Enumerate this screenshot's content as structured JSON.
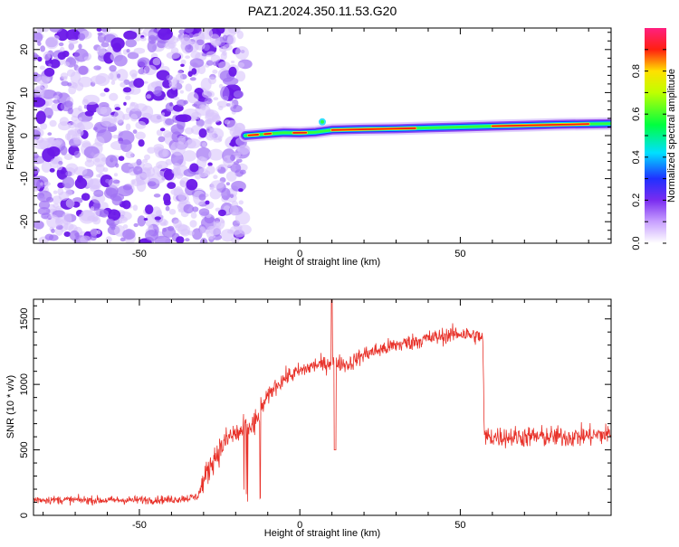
{
  "title": "PAZ1.2024.350.11.53.G20",
  "chart_data": [
    {
      "type": "heatmap",
      "xlabel": "Height of straight line (km)",
      "ylabel": "Frequency (Hz)",
      "xlim": [
        -83,
        97
      ],
      "ylim": [
        -25,
        25
      ],
      "xticks": [
        "-50",
        "0",
        "50"
      ],
      "yticks": [
        "-20",
        "-10",
        "0",
        "10",
        "20"
      ],
      "colorbar": {
        "label": "Normalized spectral amplitude",
        "range": [
          0,
          1
        ],
        "ticks": [
          "0.0",
          "0.2",
          "0.4",
          "0.6",
          "0.8"
        ]
      },
      "noise_region_x": [
        -83,
        -17
      ],
      "signal_track": [
        {
          "x": -17,
          "f": 0.0
        },
        {
          "x": -12,
          "f": 0.3
        },
        {
          "x": -5,
          "f": 0.7
        },
        {
          "x": 0,
          "f": 0.6
        },
        {
          "x": 5,
          "f": 0.8
        },
        {
          "x": 10,
          "f": 1.3
        },
        {
          "x": 20,
          "f": 1.5
        },
        {
          "x": 30,
          "f": 1.6
        },
        {
          "x": 40,
          "f": 1.8
        },
        {
          "x": 50,
          "f": 2.0
        },
        {
          "x": 60,
          "f": 2.2
        },
        {
          "x": 70,
          "f": 2.4
        },
        {
          "x": 80,
          "f": 2.6
        },
        {
          "x": 90,
          "f": 2.7
        },
        {
          "x": 97,
          "f": 2.8
        }
      ]
    },
    {
      "type": "line",
      "xlabel": "Height of straight line (km)",
      "ylabel": "SNR (10 * v/v)",
      "xlim": [
        -83,
        97
      ],
      "ylim": [
        0,
        1650
      ],
      "xticks": [
        "-50",
        "0",
        "50"
      ],
      "yticks": [
        "0",
        "500",
        "1000",
        "1500"
      ],
      "color": "#e8322a",
      "envelope": [
        {
          "x": -83,
          "y": 120
        },
        {
          "x": -60,
          "y": 115
        },
        {
          "x": -40,
          "y": 120
        },
        {
          "x": -32,
          "y": 140
        },
        {
          "x": -30,
          "y": 260
        },
        {
          "x": -27,
          "y": 430
        },
        {
          "x": -22,
          "y": 600
        },
        {
          "x": -17,
          "y": 650
        },
        {
          "x": -14,
          "y": 700
        },
        {
          "x": -12,
          "y": 820
        },
        {
          "x": -8,
          "y": 980
        },
        {
          "x": -4,
          "y": 1060
        },
        {
          "x": 0,
          "y": 1100
        },
        {
          "x": 5,
          "y": 1150
        },
        {
          "x": 8,
          "y": 1150
        },
        {
          "x": 10,
          "y": 1180
        },
        {
          "x": 15,
          "y": 1150
        },
        {
          "x": 20,
          "y": 1230
        },
        {
          "x": 30,
          "y": 1300
        },
        {
          "x": 40,
          "y": 1350
        },
        {
          "x": 50,
          "y": 1390
        },
        {
          "x": 57,
          "y": 1360
        },
        {
          "x": 57.5,
          "y": 600
        },
        {
          "x": 70,
          "y": 600
        },
        {
          "x": 85,
          "y": 600
        },
        {
          "x": 97,
          "y": 620
        }
      ],
      "features": [
        {
          "x": 10,
          "y": 1650
        },
        {
          "x": 11,
          "y": 500
        }
      ]
    }
  ],
  "colors": {
    "line": "#e8322a",
    "noise": "#8a3cf0",
    "axis": "#000000"
  }
}
